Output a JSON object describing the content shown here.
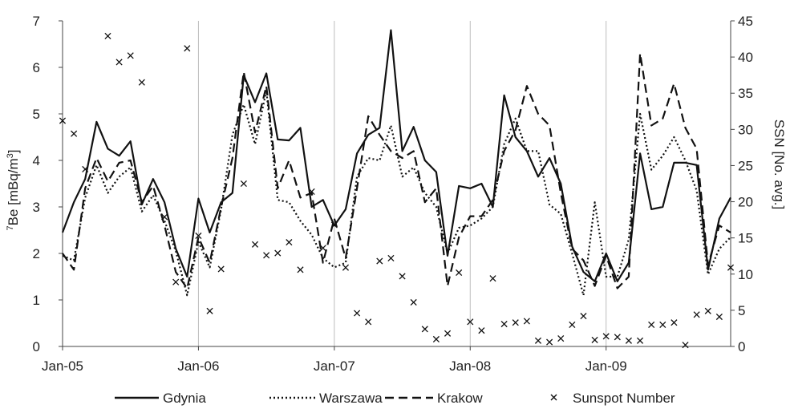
{
  "chart_data": {
    "type": "line",
    "x_tick_labels": [
      "Jan-05",
      "Jan-06",
      "Jan-07",
      "Jan-08",
      "Jan-09"
    ],
    "y_left": {
      "label_sup": "7",
      "label_main": "Be [mBq/m",
      "label_sup2": "3",
      "label_end": "]",
      "ylim": [
        0,
        7
      ],
      "ticks": [
        "0",
        "1",
        "2",
        "3",
        "4",
        "5",
        "6",
        "7"
      ]
    },
    "y_right": {
      "label": "SSN [No. avg.]",
      "ylim": [
        0,
        45
      ],
      "ticks": [
        "0",
        "5",
        "10",
        "15",
        "20",
        "25",
        "30",
        "35",
        "40",
        "45"
      ]
    },
    "x_range_months": [
      0,
      59
    ],
    "grid": "vertical at years",
    "legend_position": "bottom",
    "series": [
      {
        "name": "Gdynia",
        "axis": "left",
        "style": "solid",
        "color": "#111111",
        "x": [
          0,
          1,
          2,
          3,
          4,
          5,
          6,
          7,
          8,
          9,
          10,
          11,
          12,
          13,
          14,
          15,
          16,
          17,
          18,
          19,
          20,
          21,
          22,
          23,
          24,
          25,
          26,
          27,
          28,
          29,
          30,
          31,
          32,
          33,
          34,
          35,
          36,
          37,
          38,
          39,
          40,
          41,
          42,
          43,
          44,
          45,
          46,
          47,
          48,
          49,
          50,
          51,
          52,
          53,
          54,
          55,
          56,
          57,
          58,
          59
        ],
        "values": [
          2.45,
          3.1,
          3.6,
          4.83,
          4.25,
          4.1,
          4.41,
          3.05,
          3.6,
          3.1,
          2.1,
          1.5,
          3.18,
          2.45,
          3.1,
          3.3,
          5.83,
          5.25,
          5.87,
          4.45,
          4.43,
          4.7,
          3.0,
          3.15,
          2.6,
          2.95,
          4.15,
          4.55,
          4.7,
          6.8,
          4.2,
          4.72,
          4.0,
          3.75,
          1.95,
          3.45,
          3.4,
          3.5,
          3.0,
          5.4,
          4.5,
          4.2,
          3.65,
          4.05,
          3.5,
          2.15,
          1.6,
          1.4,
          2.0,
          1.4,
          1.8,
          4.15,
          2.95,
          3.0,
          3.95,
          3.95,
          3.9,
          1.65,
          2.75,
          3.2
        ]
      },
      {
        "name": "Warszawa",
        "axis": "left",
        "style": "dotted",
        "color": "#111111",
        "x": [
          0,
          1,
          2,
          3,
          4,
          5,
          6,
          7,
          8,
          9,
          10,
          11,
          12,
          13,
          14,
          15,
          16,
          17,
          18,
          19,
          20,
          21,
          22,
          23,
          24,
          25,
          26,
          27,
          28,
          29,
          30,
          31,
          32,
          33,
          34,
          35,
          36,
          37,
          38,
          39,
          40,
          41,
          42,
          43,
          44,
          45,
          46,
          47,
          48,
          49,
          50,
          51,
          52,
          53,
          54,
          55,
          56,
          57,
          58,
          59
        ],
        "values": [
          1.95,
          1.85,
          3.2,
          3.9,
          3.3,
          3.65,
          3.85,
          2.9,
          3.25,
          2.7,
          2.05,
          1.1,
          2.25,
          1.7,
          2.95,
          4.55,
          5.2,
          4.35,
          5.5,
          3.15,
          3.1,
          2.7,
          2.4,
          1.9,
          1.7,
          1.8,
          3.65,
          4.05,
          4.0,
          4.75,
          3.65,
          3.85,
          3.3,
          3.0,
          2.0,
          2.55,
          2.6,
          2.75,
          3.0,
          4.35,
          4.9,
          4.2,
          4.2,
          3.05,
          2.85,
          2.0,
          1.1,
          3.1,
          1.5,
          1.5,
          2.3,
          5.0,
          3.8,
          4.1,
          4.5,
          4.0,
          3.35,
          1.55,
          2.1,
          2.35
        ]
      },
      {
        "name": "Krakow",
        "axis": "left",
        "style": "dashed",
        "color": "#111111",
        "x": [
          0,
          1,
          2,
          3,
          4,
          5,
          6,
          7,
          8,
          9,
          10,
          11,
          12,
          13,
          14,
          15,
          16,
          17,
          18,
          19,
          20,
          21,
          22,
          23,
          24,
          25,
          26,
          27,
          28,
          29,
          30,
          31,
          32,
          33,
          34,
          35,
          36,
          37,
          38,
          39,
          40,
          41,
          42,
          43,
          44,
          45,
          46,
          47,
          48,
          49,
          50,
          51,
          52,
          53,
          54,
          55,
          56,
          57,
          58,
          59
        ],
        "values": [
          2.0,
          1.65,
          3.4,
          4.05,
          3.55,
          3.95,
          4.0,
          3.1,
          3.45,
          2.6,
          1.6,
          1.25,
          2.35,
          1.8,
          3.0,
          4.05,
          5.9,
          4.6,
          5.6,
          3.4,
          4.0,
          3.2,
          3.3,
          1.8,
          2.75,
          1.9,
          3.4,
          4.95,
          4.55,
          4.2,
          4.05,
          4.2,
          3.1,
          3.4,
          1.3,
          2.35,
          2.8,
          2.8,
          3.15,
          4.2,
          4.65,
          5.6,
          5.0,
          4.75,
          3.3,
          2.1,
          1.85,
          1.3,
          1.95,
          1.25,
          1.5,
          6.3,
          4.75,
          4.9,
          5.65,
          4.7,
          4.25,
          1.75,
          2.6,
          2.45
        ]
      },
      {
        "name": "Sunspot Number",
        "axis": "right",
        "style": "markers-x",
        "color": "#111111",
        "x": [
          0,
          1,
          2,
          4,
          5,
          6,
          7,
          9,
          10,
          11,
          12,
          13,
          14,
          16,
          17,
          18,
          19,
          20,
          21,
          22,
          23,
          24,
          25,
          26,
          27,
          28,
          29,
          30,
          31,
          32,
          33,
          34,
          35,
          36,
          37,
          38,
          39,
          40,
          41,
          42,
          43,
          44,
          45,
          46,
          47,
          48,
          49,
          50,
          51,
          52,
          53,
          54,
          55,
          56,
          57,
          58,
          59
        ],
        "values": [
          31.2,
          29.4,
          24.5,
          42.9,
          39.3,
          40.2,
          36.5,
          17.9,
          8.9,
          41.2,
          15.3,
          4.9,
          10.7,
          22.5,
          14.1,
          12.6,
          12.9,
          14.4,
          10.6,
          21.4,
          13.6,
          16.8,
          10.9,
          4.6,
          3.4,
          11.8,
          12.2,
          9.7,
          6.1,
          2.4,
          1.0,
          1.8,
          10.2,
          3.4,
          2.2,
          9.4,
          3.1,
          3.3,
          3.5,
          0.8,
          0.6,
          1.1,
          3.0,
          4.2,
          0.9,
          1.4,
          1.3,
          0.8,
          0.8,
          3.0,
          3.0,
          3.3,
          0.2,
          4.4,
          4.9,
          4.1,
          10.9
        ]
      }
    ]
  }
}
